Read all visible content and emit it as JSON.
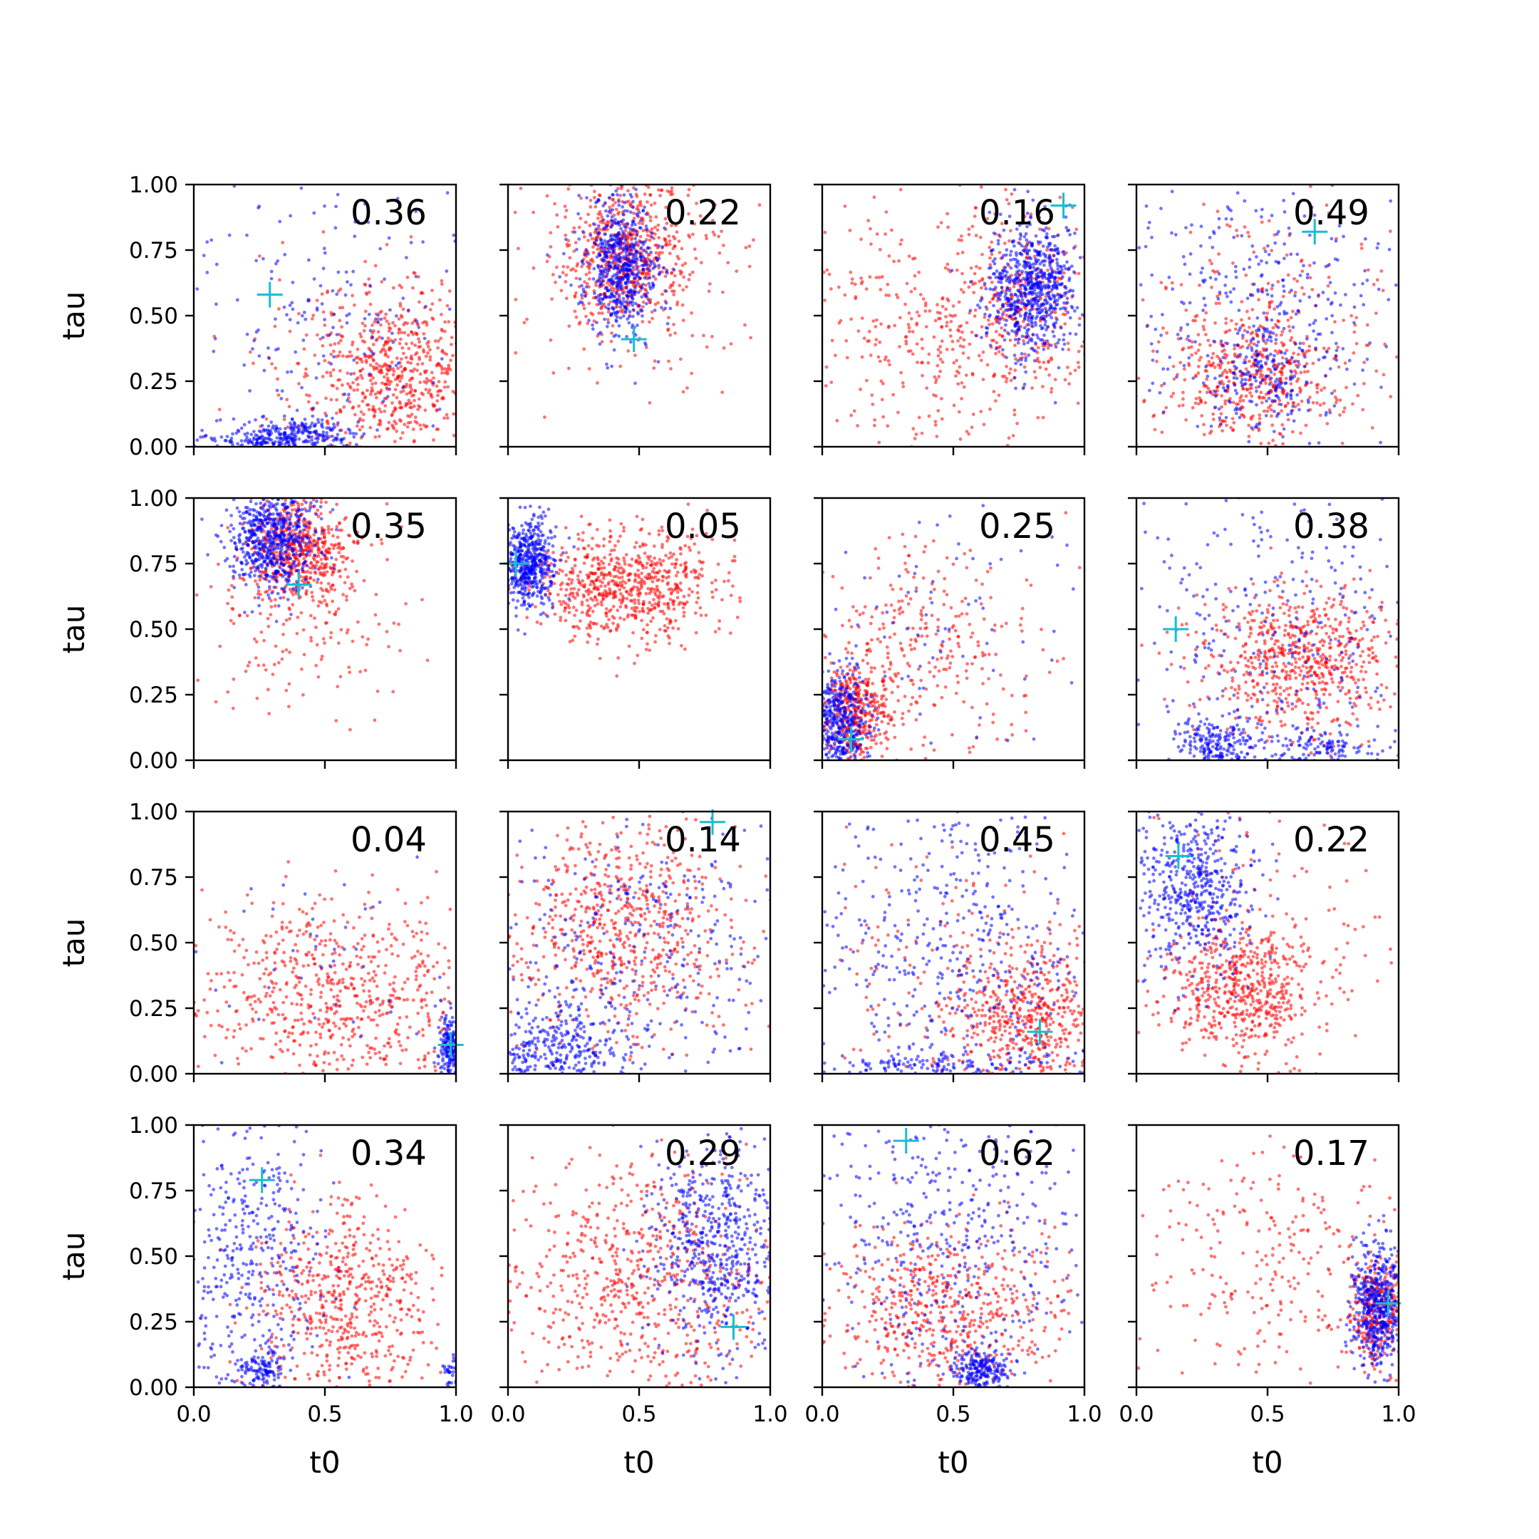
{
  "figure": {
    "rows": 4,
    "cols": 4,
    "colors": {
      "blue": "#0000ff",
      "red": "#ff0000",
      "marker": "#17becf",
      "axes": "#000000"
    }
  },
  "chart_data": [
    {
      "type": "scatter",
      "score": "0.36",
      "marker": [
        0.29,
        0.58
      ],
      "blue": [
        {
          "cx": 0.4,
          "cy": 0.04,
          "sx": 0.1,
          "sy": 0.04,
          "n": 230
        },
        {
          "cx": 0.25,
          "cy": 0.02,
          "sx": 0.18,
          "sy": 0.02,
          "n": 90
        },
        {
          "cx": 0.5,
          "cy": 0.5,
          "sx": 0.3,
          "sy": 0.3,
          "n": 170
        }
      ],
      "red": [
        {
          "cx": 0.78,
          "cy": 0.28,
          "sx": 0.16,
          "sy": 0.15,
          "n": 500
        },
        {
          "cx": 0.6,
          "cy": 0.3,
          "sx": 0.25,
          "sy": 0.25,
          "n": 120
        }
      ],
      "xlabel": "",
      "ylabel": "tau"
    },
    {
      "type": "scatter",
      "score": "0.22",
      "marker": [
        0.48,
        0.41
      ],
      "blue": [
        {
          "cx": 0.43,
          "cy": 0.68,
          "sx": 0.07,
          "sy": 0.13,
          "n": 600
        }
      ],
      "red": [
        {
          "cx": 0.45,
          "cy": 0.72,
          "sx": 0.1,
          "sy": 0.13,
          "n": 450
        },
        {
          "cx": 0.5,
          "cy": 0.7,
          "sx": 0.22,
          "sy": 0.2,
          "n": 250
        }
      ],
      "xlabel": "",
      "ylabel": ""
    },
    {
      "type": "scatter",
      "score": "0.16",
      "marker": [
        0.92,
        0.92
      ],
      "blue": [
        {
          "cx": 0.8,
          "cy": 0.6,
          "sx": 0.09,
          "sy": 0.13,
          "n": 700
        }
      ],
      "red": [
        {
          "cx": 0.5,
          "cy": 0.45,
          "sx": 0.3,
          "sy": 0.28,
          "n": 450
        },
        {
          "cx": 0.78,
          "cy": 0.55,
          "sx": 0.1,
          "sy": 0.12,
          "n": 150
        }
      ],
      "xlabel": "",
      "ylabel": ""
    },
    {
      "type": "scatter",
      "score": "0.49",
      "marker": [
        0.68,
        0.82
      ],
      "blue": [
        {
          "cx": 0.5,
          "cy": 0.5,
          "sx": 0.3,
          "sy": 0.3,
          "n": 330
        },
        {
          "cx": 0.48,
          "cy": 0.27,
          "sx": 0.08,
          "sy": 0.09,
          "n": 140
        }
      ],
      "red": [
        {
          "cx": 0.45,
          "cy": 0.28,
          "sx": 0.17,
          "sy": 0.13,
          "n": 450
        },
        {
          "cx": 0.5,
          "cy": 0.5,
          "sx": 0.3,
          "sy": 0.3,
          "n": 150
        }
      ],
      "xlabel": "",
      "ylabel": ""
    },
    {
      "type": "scatter",
      "score": "0.35",
      "marker": [
        0.4,
        0.67
      ],
      "blue": [
        {
          "cx": 0.3,
          "cy": 0.85,
          "sx": 0.08,
          "sy": 0.1,
          "n": 600
        }
      ],
      "red": [
        {
          "cx": 0.4,
          "cy": 0.8,
          "sx": 0.1,
          "sy": 0.1,
          "n": 500
        },
        {
          "cx": 0.4,
          "cy": 0.6,
          "sx": 0.2,
          "sy": 0.2,
          "n": 200
        }
      ],
      "xlabel": "",
      "ylabel": "tau"
    },
    {
      "type": "scatter",
      "score": "0.05",
      "marker": [
        0.03,
        0.75
      ],
      "blue": [
        {
          "cx": 0.08,
          "cy": 0.75,
          "sx": 0.05,
          "sy": 0.09,
          "n": 500
        }
      ],
      "red": [
        {
          "cx": 0.45,
          "cy": 0.67,
          "sx": 0.18,
          "sy": 0.1,
          "n": 700
        }
      ],
      "xlabel": "",
      "ylabel": ""
    },
    {
      "type": "scatter",
      "score": "0.25",
      "marker": [
        0.11,
        0.08
      ],
      "blue": [
        {
          "cx": 0.07,
          "cy": 0.15,
          "sx": 0.05,
          "sy": 0.1,
          "n": 380
        },
        {
          "cx": 0.5,
          "cy": 0.5,
          "sx": 0.3,
          "sy": 0.3,
          "n": 70
        }
      ],
      "red": [
        {
          "cx": 0.12,
          "cy": 0.18,
          "sx": 0.07,
          "sy": 0.09,
          "n": 350
        },
        {
          "cx": 0.35,
          "cy": 0.4,
          "sx": 0.22,
          "sy": 0.2,
          "n": 300
        }
      ],
      "xlabel": "",
      "ylabel": ""
    },
    {
      "type": "scatter",
      "score": "0.38",
      "marker": [
        0.15,
        0.5
      ],
      "blue": [
        {
          "cx": 0.3,
          "cy": 0.06,
          "sx": 0.07,
          "sy": 0.05,
          "n": 200
        },
        {
          "cx": 0.7,
          "cy": 0.04,
          "sx": 0.12,
          "sy": 0.04,
          "n": 120
        },
        {
          "cx": 0.5,
          "cy": 0.5,
          "sx": 0.3,
          "sy": 0.3,
          "n": 250
        }
      ],
      "red": [
        {
          "cx": 0.62,
          "cy": 0.37,
          "sx": 0.2,
          "sy": 0.14,
          "n": 650
        }
      ],
      "xlabel": "",
      "ylabel": ""
    },
    {
      "type": "scatter",
      "score": "0.04",
      "marker": [
        0.98,
        0.11
      ],
      "blue": [
        {
          "cx": 0.98,
          "cy": 0.1,
          "sx": 0.02,
          "sy": 0.06,
          "n": 200
        },
        {
          "cx": 0.5,
          "cy": 0.5,
          "sx": 0.3,
          "sy": 0.3,
          "n": 40
        }
      ],
      "red": [
        {
          "cx": 0.55,
          "cy": 0.3,
          "sx": 0.28,
          "sy": 0.18,
          "n": 600
        }
      ],
      "xlabel": "",
      "ylabel": "tau"
    },
    {
      "type": "scatter",
      "score": "0.14",
      "marker": [
        0.78,
        0.96
      ],
      "blue": [
        {
          "cx": 0.2,
          "cy": 0.1,
          "sx": 0.15,
          "sy": 0.08,
          "n": 280
        },
        {
          "cx": 0.5,
          "cy": 0.5,
          "sx": 0.3,
          "sy": 0.3,
          "n": 280
        }
      ],
      "red": [
        {
          "cx": 0.42,
          "cy": 0.56,
          "sx": 0.18,
          "sy": 0.2,
          "n": 500
        },
        {
          "cx": 0.5,
          "cy": 0.5,
          "sx": 0.3,
          "sy": 0.3,
          "n": 150
        }
      ],
      "xlabel": "",
      "ylabel": ""
    },
    {
      "type": "scatter",
      "score": "0.45",
      "marker": [
        0.83,
        0.16
      ],
      "blue": [
        {
          "cx": 0.5,
          "cy": 0.5,
          "sx": 0.3,
          "sy": 0.3,
          "n": 380
        },
        {
          "cx": 0.4,
          "cy": 0.03,
          "sx": 0.25,
          "sy": 0.03,
          "n": 150
        }
      ],
      "red": [
        {
          "cx": 0.8,
          "cy": 0.22,
          "sx": 0.15,
          "sy": 0.13,
          "n": 450
        },
        {
          "cx": 0.5,
          "cy": 0.4,
          "sx": 0.3,
          "sy": 0.25,
          "n": 150
        }
      ],
      "xlabel": "",
      "ylabel": ""
    },
    {
      "type": "scatter",
      "score": "0.22",
      "marker": [
        0.16,
        0.83
      ],
      "blue": [
        {
          "cx": 0.22,
          "cy": 0.72,
          "sx": 0.12,
          "sy": 0.16,
          "n": 500
        }
      ],
      "red": [
        {
          "cx": 0.4,
          "cy": 0.32,
          "sx": 0.13,
          "sy": 0.12,
          "n": 500
        },
        {
          "cx": 0.5,
          "cy": 0.5,
          "sx": 0.25,
          "sy": 0.25,
          "n": 150
        }
      ],
      "xlabel": "",
      "ylabel": ""
    },
    {
      "type": "scatter",
      "score": "0.34",
      "marker": [
        0.26,
        0.79
      ],
      "blue": [
        {
          "cx": 0.26,
          "cy": 0.06,
          "sx": 0.04,
          "sy": 0.04,
          "n": 120
        },
        {
          "cx": 0.2,
          "cy": 0.5,
          "sx": 0.15,
          "sy": 0.25,
          "n": 350
        },
        {
          "cx": 0.98,
          "cy": 0.05,
          "sx": 0.02,
          "sy": 0.03,
          "n": 30
        }
      ],
      "red": [
        {
          "cx": 0.58,
          "cy": 0.3,
          "sx": 0.17,
          "sy": 0.2,
          "n": 550
        }
      ],
      "xlabel": "t0",
      "ylabel": "tau"
    },
    {
      "type": "scatter",
      "score": "0.29",
      "marker": [
        0.86,
        0.23
      ],
      "blue": [
        {
          "cx": 0.8,
          "cy": 0.55,
          "sx": 0.12,
          "sy": 0.2,
          "n": 550
        }
      ],
      "red": [
        {
          "cx": 0.5,
          "cy": 0.4,
          "sx": 0.28,
          "sy": 0.22,
          "n": 600
        }
      ],
      "xlabel": "t0",
      "ylabel": ""
    },
    {
      "type": "scatter",
      "score": "0.62",
      "marker": [
        0.32,
        0.94
      ],
      "blue": [
        {
          "cx": 0.6,
          "cy": 0.07,
          "sx": 0.05,
          "sy": 0.04,
          "n": 220
        },
        {
          "cx": 0.5,
          "cy": 0.6,
          "sx": 0.3,
          "sy": 0.28,
          "n": 380
        }
      ],
      "red": [
        {
          "cx": 0.48,
          "cy": 0.3,
          "sx": 0.22,
          "sy": 0.15,
          "n": 550
        }
      ],
      "xlabel": "t0",
      "ylabel": ""
    },
    {
      "type": "scatter",
      "score": "0.17",
      "marker": [
        0.96,
        0.32
      ],
      "blue": [
        {
          "cx": 0.92,
          "cy": 0.3,
          "sx": 0.05,
          "sy": 0.12,
          "n": 500
        }
      ],
      "red": [
        {
          "cx": 0.92,
          "cy": 0.28,
          "sx": 0.05,
          "sy": 0.1,
          "n": 300
        },
        {
          "cx": 0.5,
          "cy": 0.45,
          "sx": 0.28,
          "sy": 0.25,
          "n": 250
        }
      ],
      "xlabel": "t0",
      "ylabel": ""
    }
  ],
  "axes": {
    "xlim": [
      0,
      1
    ],
    "ylim": [
      0,
      1
    ],
    "xticks": [
      "0.0",
      "0.5",
      "1.0"
    ],
    "yticks": [
      "0.00",
      "0.25",
      "0.50",
      "0.75",
      "1.00"
    ]
  }
}
